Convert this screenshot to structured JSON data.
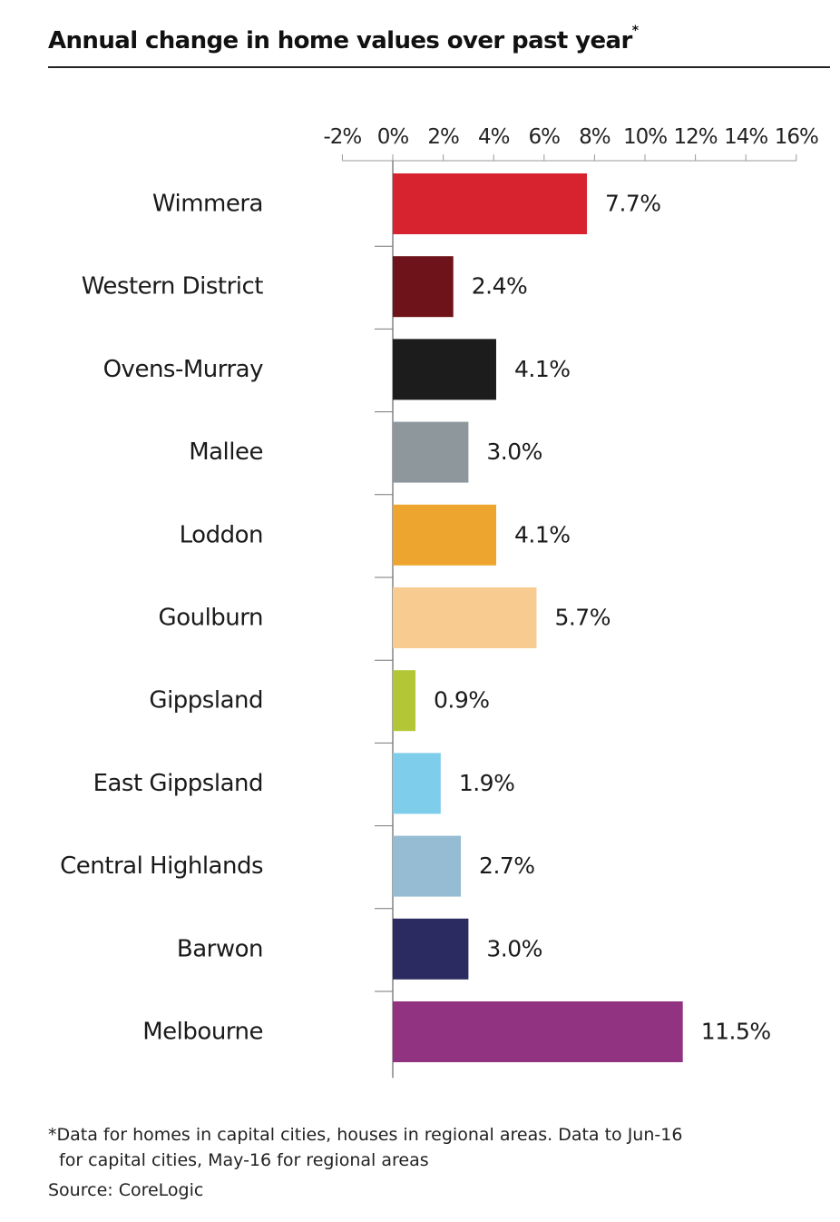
{
  "header": {
    "title": "Annual change in home values over past year",
    "title_marker": "*"
  },
  "footnote": {
    "marker": "*",
    "line1": "Data for homes in capital cities, houses in regional areas. Data to Jun-16",
    "line2": "for capital cities, May-16 for regional areas"
  },
  "source": "Source: CoreLogic",
  "chart_data": {
    "type": "bar",
    "orientation": "horizontal",
    "title": "Annual change in home values over past year",
    "xlim": [
      -2,
      16
    ],
    "ticks": [
      -2,
      0,
      2,
      4,
      6,
      8,
      10,
      12,
      14,
      16
    ],
    "tick_labels": [
      "-2%",
      "0%",
      "2%",
      "4%",
      "6%",
      "8%",
      "10%",
      "12%",
      "14%",
      "16%"
    ],
    "grid": false,
    "categories": [
      "Wimmera",
      "Western District",
      "Ovens-Murray",
      "Mallee",
      "Loddon",
      "Goulburn",
      "Gippsland",
      "East Gippsland",
      "Central Highlands",
      "Barwon",
      "Melbourne"
    ],
    "values": [
      7.7,
      2.4,
      4.1,
      3.0,
      4.1,
      5.7,
      0.9,
      1.9,
      2.7,
      3.0,
      11.5
    ],
    "value_labels": [
      "7.7%",
      "2.4%",
      "4.1%",
      "3.0%",
      "4.1%",
      "5.7%",
      "0.9%",
      "1.9%",
      "2.7%",
      "3.0%",
      "11.5%"
    ],
    "colors": [
      "#d7232f",
      "#6d1319",
      "#1c1c1c",
      "#8e989c",
      "#eea530",
      "#f8cb90",
      "#b3c736",
      "#7dcdeb",
      "#95bcd3",
      "#2b2a61",
      "#923382"
    ]
  }
}
